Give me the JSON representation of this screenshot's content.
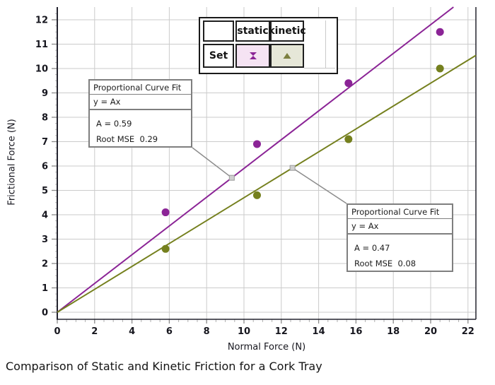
{
  "caption": "Comparison of Static and Kinetic Friction for a Cork Tray",
  "chart_data": {
    "type": "scatter",
    "xlabel": "Normal Force (N)",
    "ylabel": "Frictional Force (N)",
    "xlim": [
      0,
      22.4
    ],
    "ylim": [
      -0.3,
      12.5
    ],
    "x_ticks": [
      0,
      2,
      4,
      6,
      8,
      10,
      12,
      14,
      16,
      18,
      20,
      22
    ],
    "y_ticks": [
      0,
      1,
      2,
      3,
      4,
      5,
      6,
      7,
      8,
      9,
      10,
      11,
      12
    ],
    "grid": true,
    "colors": {
      "static": "#8b2496",
      "kinetic": "#75801e",
      "gridline": "#cbcbcb",
      "spine": "#23232e",
      "connector": "#8c8c8c",
      "handle_fill": "#cfcfcf",
      "handle_stroke": "#9a9a9a"
    },
    "series": [
      {
        "name": "static",
        "marker": "hourglass-marker",
        "color": "#8b2496",
        "points": [
          [
            5.8,
            4.1
          ],
          [
            10.7,
            6.9
          ],
          [
            15.6,
            9.4
          ],
          [
            20.5,
            11.5
          ]
        ],
        "fit": {
          "type": "proportional",
          "A": 0.59,
          "root_mse": 0.29
        }
      },
      {
        "name": "kinetic",
        "marker": "triangle-marker",
        "color": "#75801e",
        "points": [
          [
            5.8,
            2.6
          ],
          [
            10.7,
            4.8
          ],
          [
            15.6,
            7.1
          ],
          [
            20.5,
            10.0
          ]
        ],
        "fit": {
          "type": "proportional",
          "A": 0.47,
          "root_mse": 0.08
        }
      }
    ]
  },
  "legend": {
    "row_label": "Set",
    "columns": [
      "static",
      "kinetic"
    ],
    "marker_cells": [
      {
        "series": "static",
        "bg": "#f5e3f3",
        "marker_color": "#8b2496"
      },
      {
        "series": "kinetic",
        "bg": "#e6e7d8",
        "marker_color": "#7c8040"
      }
    ]
  },
  "annotations": [
    {
      "series": "static",
      "title": "Proportional Curve Fit",
      "formula": "y = Ax",
      "a_line": "A = 0.59",
      "rmse_line": "Root MSE  0.29",
      "anchor_x": 9.35
    },
    {
      "series": "kinetic",
      "title": "Proportional Curve Fit",
      "formula": "y = Ax",
      "a_line": "A = 0.47",
      "rmse_line": "Root MSE  0.08",
      "anchor_x": 12.6
    }
  ]
}
